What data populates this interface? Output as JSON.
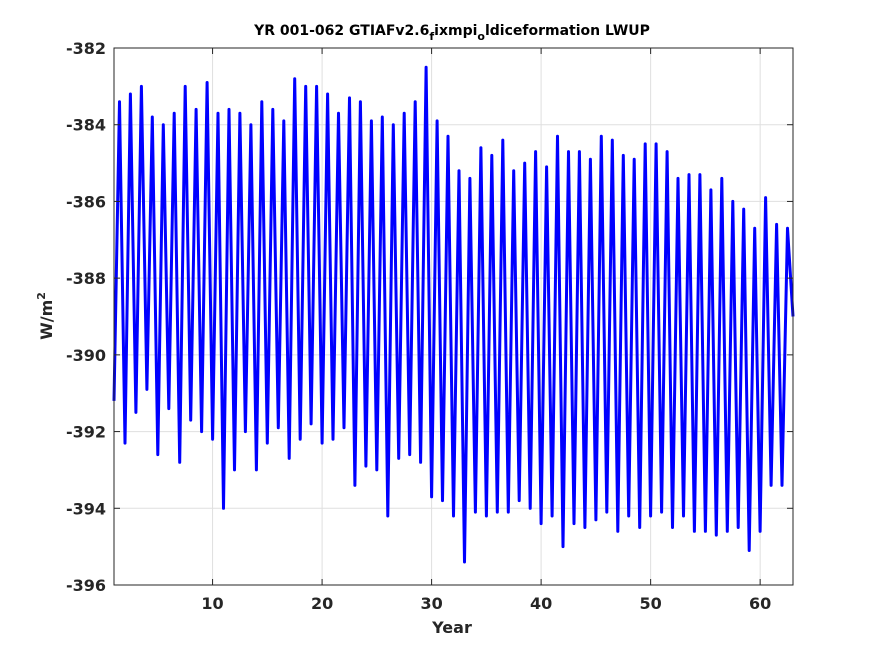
{
  "chart_data": {
    "type": "line",
    "title": "YR 001-062 GTIAFv2.6_fixmpi_oldiceformation LWUP",
    "title_parts": {
      "a": "YR 001-062 GTIAFv2.6",
      "sub1": "f",
      "b": "ixmpi",
      "sub2": "o",
      "c": "ldiceformation LWUP"
    },
    "xlabel": "Year",
    "ylabel": "W/m",
    "ylabel_sup": "2",
    "xlim": [
      1,
      63
    ],
    "ylim": [
      -396,
      -382
    ],
    "xticks": [
      10,
      20,
      30,
      40,
      50,
      60
    ],
    "yticks": [
      -396,
      -394,
      -392,
      -390,
      -388,
      -386,
      -384,
      -382
    ],
    "grid": true,
    "series": [
      {
        "color": "#0000ff",
        "x": [
          1.0,
          1.5,
          2.0,
          2.5,
          3.0,
          3.5,
          4.0,
          4.5,
          5.0,
          5.5,
          6.0,
          6.5,
          7.0,
          7.5,
          8.0,
          8.5,
          9.0,
          9.5,
          10.0,
          10.5,
          11.0,
          11.5,
          12.0,
          12.5,
          13.0,
          13.5,
          14.0,
          14.5,
          15.0,
          15.5,
          16.0,
          16.5,
          17.0,
          17.5,
          18.0,
          18.5,
          19.0,
          19.5,
          20.0,
          20.5,
          21.0,
          21.5,
          22.0,
          22.5,
          23.0,
          23.5,
          24.0,
          24.5,
          25.0,
          25.5,
          26.0,
          26.5,
          27.0,
          27.5,
          28.0,
          28.5,
          29.0,
          29.5,
          30.0,
          30.5,
          31.0,
          31.5,
          32.0,
          32.5,
          33.0,
          33.5,
          34.0,
          34.5,
          35.0,
          35.5,
          36.0,
          36.5,
          37.0,
          37.5,
          38.0,
          38.5,
          39.0,
          39.5,
          40.0,
          40.5,
          41.0,
          41.5,
          42.0,
          42.5,
          43.0,
          43.5,
          44.0,
          44.5,
          45.0,
          45.5,
          46.0,
          46.5,
          47.0,
          47.5,
          48.0,
          48.5,
          49.0,
          49.5,
          50.0,
          50.5,
          51.0,
          51.5,
          52.0,
          52.5,
          53.0,
          53.5,
          54.0,
          54.5,
          55.0,
          55.5,
          56.0,
          56.5,
          57.0,
          57.5,
          58.0,
          58.5,
          59.0,
          59.5,
          60.0,
          60.5,
          61.0,
          61.5,
          62.0,
          62.5,
          63.0
        ],
        "y": [
          -391.2,
          -383.4,
          -392.3,
          -383.2,
          -391.5,
          -383.0,
          -390.9,
          -383.8,
          -392.6,
          -384.0,
          -391.4,
          -383.7,
          -392.8,
          -383.0,
          -391.7,
          -383.6,
          -392.0,
          -382.9,
          -392.2,
          -383.7,
          -394.0,
          -383.6,
          -393.0,
          -383.7,
          -392.0,
          -384.0,
          -393.0,
          -383.4,
          -392.3,
          -383.6,
          -391.9,
          -383.9,
          -392.7,
          -382.8,
          -392.2,
          -383.0,
          -391.8,
          -383.0,
          -392.3,
          -383.2,
          -392.2,
          -383.7,
          -391.9,
          -383.3,
          -393.4,
          -383.4,
          -392.9,
          -383.9,
          -393.0,
          -383.8,
          -394.2,
          -384.0,
          -392.7,
          -383.7,
          -392.6,
          -383.4,
          -392.8,
          -382.5,
          -393.7,
          -383.9,
          -393.8,
          -384.3,
          -394.2,
          -385.2,
          -395.4,
          -385.4,
          -394.1,
          -384.6,
          -394.2,
          -384.8,
          -394.1,
          -384.4,
          -394.1,
          -385.2,
          -393.8,
          -385.0,
          -394.0,
          -384.7,
          -394.4,
          -385.1,
          -394.2,
          -384.3,
          -395.0,
          -384.7,
          -394.4,
          -384.7,
          -394.5,
          -384.9,
          -394.3,
          -384.3,
          -394.1,
          -384.4,
          -394.6,
          -384.8,
          -394.2,
          -384.9,
          -394.5,
          -384.5,
          -394.2,
          -384.5,
          -394.1,
          -384.7,
          -394.5,
          -385.4,
          -394.2,
          -385.3,
          -394.6,
          -385.3,
          -394.6,
          -385.7,
          -394.7,
          -385.4,
          -394.6,
          -386.0,
          -394.5,
          -386.2,
          -395.1,
          -386.7,
          -394.6,
          -385.9,
          -393.4,
          -386.6,
          -393.4,
          -386.7,
          -389.0
        ]
      }
    ]
  }
}
